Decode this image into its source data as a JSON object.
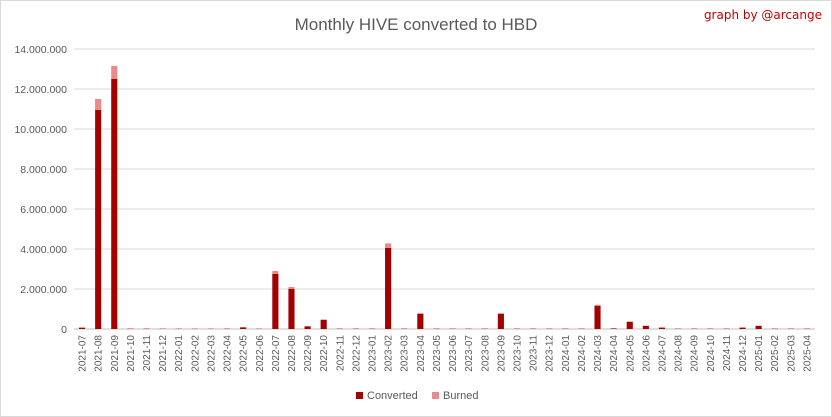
{
  "credit": "graph by @arcange",
  "colors": {
    "converted": "#a30000",
    "burned": "#e88a8a",
    "grid": "#d9d9d9",
    "axis_text": "#595959"
  },
  "chart_data": {
    "type": "bar",
    "stacked": true,
    "title": "Monthly HIVE converted to HBD",
    "xlabel": "",
    "ylabel": "",
    "ylim": [
      0,
      14000000
    ],
    "yticks": [
      0,
      2000000,
      4000000,
      6000000,
      8000000,
      10000000,
      12000000,
      14000000
    ],
    "ytick_labels": [
      "0",
      "2.000.000",
      "4.000.000",
      "6.000.000",
      "8.000.000",
      "10.000.000",
      "12.000.000",
      "14.000.000"
    ],
    "grid": true,
    "legend_position": "bottom",
    "categories": [
      "2021-07",
      "2021-08",
      "2021-09",
      "2021-10",
      "2021-11",
      "2021-12",
      "2022-01",
      "2022-02",
      "2022-03",
      "2022-04",
      "2022-05",
      "2022-06",
      "2022-07",
      "2022-08",
      "2022-09",
      "2022-10",
      "2022-11",
      "2022-12",
      "2023-01",
      "2023-02",
      "2023-03",
      "2023-04",
      "2023-05",
      "2023-06",
      "2023-07",
      "2023-08",
      "2023-09",
      "2023-10",
      "2023-11",
      "2023-12",
      "2024-01",
      "2024-02",
      "2024-03",
      "2024-04",
      "2024-05",
      "2024-06",
      "2024-07",
      "2024-08",
      "2024-09",
      "2024-10",
      "2024-11",
      "2024-12",
      "2025-01",
      "2025-02",
      "2025-03",
      "2025-04"
    ],
    "series": [
      {
        "name": "Converted",
        "values": [
          70000,
          10950000,
          12500000,
          20000,
          20000,
          15000,
          15000,
          15000,
          15000,
          20000,
          80000,
          15000,
          2750000,
          2000000,
          130000,
          450000,
          20000,
          20000,
          20000,
          4050000,
          20000,
          750000,
          20000,
          20000,
          20000,
          20000,
          750000,
          20000,
          20000,
          20000,
          20000,
          20000,
          1150000,
          30000,
          350000,
          150000,
          70000,
          20000,
          20000,
          20000,
          20000,
          70000,
          150000,
          20000,
          20000,
          20000
        ]
      },
      {
        "name": "Burned",
        "values": [
          5000,
          550000,
          650000,
          5000,
          5000,
          5000,
          5000,
          5000,
          5000,
          5000,
          10000,
          5000,
          150000,
          100000,
          20000,
          30000,
          5000,
          5000,
          5000,
          230000,
          5000,
          40000,
          5000,
          5000,
          5000,
          5000,
          40000,
          5000,
          5000,
          5000,
          5000,
          5000,
          60000,
          5000,
          30000,
          20000,
          10000,
          5000,
          5000,
          5000,
          5000,
          10000,
          20000,
          5000,
          5000,
          5000
        ]
      }
    ]
  }
}
